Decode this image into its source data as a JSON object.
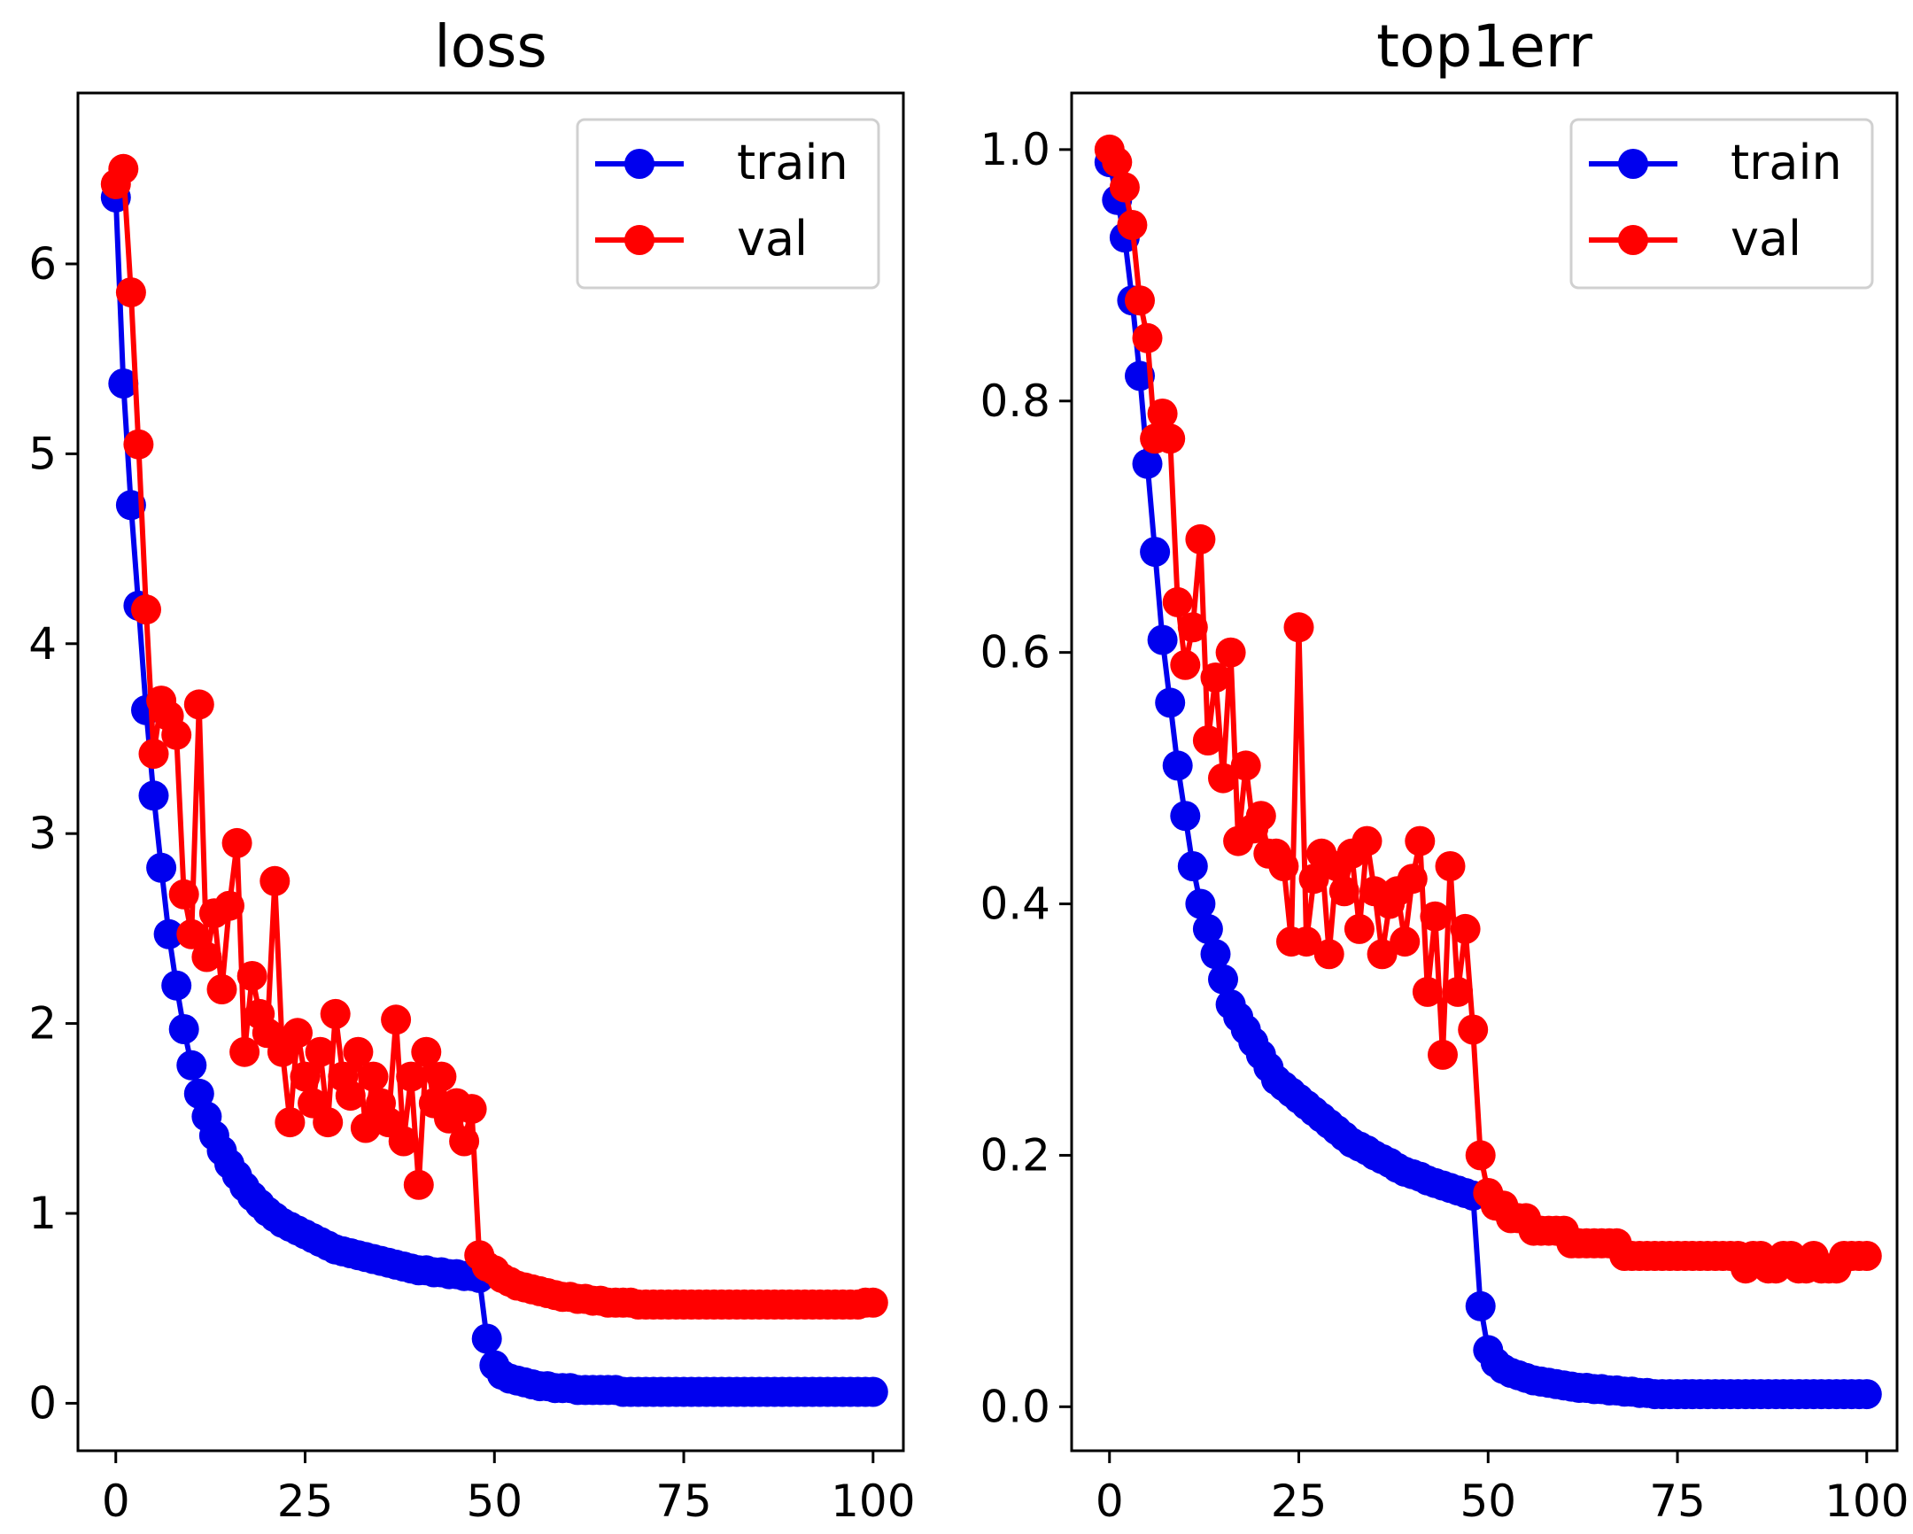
{
  "chart_data": [
    {
      "type": "line",
      "title": "loss",
      "xlabel": "",
      "ylabel": "",
      "xlim": [
        -5,
        104
      ],
      "ylim": [
        -0.25,
        6.9
      ],
      "xticks": [
        0,
        25,
        50,
        75,
        100
      ],
      "xtick_labels": [
        "0",
        "25",
        "50",
        "75",
        "100"
      ],
      "yticks": [
        0,
        1,
        2,
        3,
        4,
        5,
        6
      ],
      "ytick_labels": [
        "0",
        "1",
        "2",
        "3",
        "4",
        "5",
        "6"
      ],
      "legend": "top-right",
      "grid": false,
      "x": [
        0,
        1,
        2,
        3,
        4,
        5,
        6,
        7,
        8,
        9,
        10,
        11,
        12,
        13,
        14,
        15,
        16,
        17,
        18,
        19,
        20,
        21,
        22,
        23,
        24,
        25,
        26,
        27,
        28,
        29,
        30,
        31,
        32,
        33,
        34,
        35,
        36,
        37,
        38,
        39,
        40,
        41,
        42,
        43,
        44,
        45,
        46,
        47,
        48,
        49,
        50,
        51,
        52,
        53,
        54,
        55,
        56,
        57,
        58,
        59,
        60,
        61,
        62,
        63,
        64,
        65,
        66,
        67,
        68,
        69,
        70,
        71,
        72,
        73,
        74,
        75,
        76,
        77,
        78,
        79,
        80,
        81,
        82,
        83,
        84,
        85,
        86,
        87,
        88,
        89,
        90,
        91,
        92,
        93,
        94,
        95,
        96,
        97,
        98,
        99,
        100
      ],
      "series": [
        {
          "name": "train",
          "color": "#0000ee",
          "values": [
            6.35,
            5.37,
            4.73,
            4.2,
            3.65,
            3.2,
            2.82,
            2.47,
            2.2,
            1.97,
            1.78,
            1.63,
            1.51,
            1.41,
            1.33,
            1.26,
            1.2,
            1.14,
            1.09,
            1.05,
            1.01,
            0.98,
            0.95,
            0.93,
            0.91,
            0.89,
            0.87,
            0.85,
            0.83,
            0.81,
            0.8,
            0.79,
            0.78,
            0.77,
            0.76,
            0.75,
            0.74,
            0.73,
            0.72,
            0.71,
            0.7,
            0.7,
            0.69,
            0.69,
            0.68,
            0.68,
            0.67,
            0.67,
            0.66,
            0.34,
            0.2,
            0.15,
            0.13,
            0.12,
            0.11,
            0.1,
            0.09,
            0.09,
            0.08,
            0.08,
            0.08,
            0.07,
            0.07,
            0.07,
            0.07,
            0.07,
            0.07,
            0.06,
            0.06,
            0.06,
            0.06,
            0.06,
            0.06,
            0.06,
            0.06,
            0.06,
            0.06,
            0.06,
            0.06,
            0.06,
            0.06,
            0.06,
            0.06,
            0.06,
            0.06,
            0.06,
            0.06,
            0.06,
            0.06,
            0.06,
            0.06,
            0.06,
            0.06,
            0.06,
            0.06,
            0.06,
            0.06,
            0.06,
            0.06,
            0.06,
            0.06
          ]
        },
        {
          "name": "val",
          "color": "#ff0000",
          "values": [
            6.42,
            6.5,
            5.85,
            5.05,
            4.18,
            3.42,
            3.7,
            3.62,
            3.52,
            2.68,
            2.47,
            3.68,
            2.35,
            2.58,
            2.18,
            2.62,
            2.95,
            1.85,
            2.25,
            2.05,
            1.95,
            2.75,
            1.85,
            1.48,
            1.95,
            1.72,
            1.58,
            1.85,
            1.48,
            2.05,
            1.72,
            1.62,
            1.85,
            1.45,
            1.72,
            1.58,
            1.48,
            2.02,
            1.38,
            1.72,
            1.15,
            1.85,
            1.58,
            1.72,
            1.5,
            1.58,
            1.38,
            1.55,
            0.78,
            0.72,
            0.7,
            0.66,
            0.64,
            0.62,
            0.61,
            0.6,
            0.59,
            0.58,
            0.57,
            0.56,
            0.56,
            0.55,
            0.55,
            0.54,
            0.54,
            0.53,
            0.53,
            0.53,
            0.53,
            0.52,
            0.52,
            0.52,
            0.52,
            0.52,
            0.52,
            0.52,
            0.52,
            0.52,
            0.52,
            0.52,
            0.52,
            0.52,
            0.52,
            0.52,
            0.52,
            0.52,
            0.52,
            0.52,
            0.52,
            0.52,
            0.52,
            0.52,
            0.52,
            0.52,
            0.52,
            0.52,
            0.52,
            0.52,
            0.52,
            0.53,
            0.53
          ]
        }
      ]
    },
    {
      "type": "line",
      "title": "top1err",
      "xlabel": "",
      "ylabel": "",
      "xlim": [
        -5,
        104
      ],
      "ylim": [
        -0.035,
        1.045
      ],
      "xticks": [
        0,
        25,
        50,
        75,
        100
      ],
      "xtick_labels": [
        "0",
        "25",
        "50",
        "75",
        "100"
      ],
      "yticks": [
        0.0,
        0.2,
        0.4,
        0.6,
        0.8,
        1.0
      ],
      "ytick_labels": [
        "0.0",
        "0.2",
        "0.4",
        "0.6",
        "0.8",
        "1.0"
      ],
      "legend": "top-right",
      "grid": false,
      "x": [
        0,
        1,
        2,
        3,
        4,
        5,
        6,
        7,
        8,
        9,
        10,
        11,
        12,
        13,
        14,
        15,
        16,
        17,
        18,
        19,
        20,
        21,
        22,
        23,
        24,
        25,
        26,
        27,
        28,
        29,
        30,
        31,
        32,
        33,
        34,
        35,
        36,
        37,
        38,
        39,
        40,
        41,
        42,
        43,
        44,
        45,
        46,
        47,
        48,
        49,
        50,
        51,
        52,
        53,
        54,
        55,
        56,
        57,
        58,
        59,
        60,
        61,
        62,
        63,
        64,
        65,
        66,
        67,
        68,
        69,
        70,
        71,
        72,
        73,
        74,
        75,
        76,
        77,
        78,
        79,
        80,
        81,
        82,
        83,
        84,
        85,
        86,
        87,
        88,
        89,
        90,
        91,
        92,
        93,
        94,
        95,
        96,
        97,
        98,
        99,
        100
      ],
      "series": [
        {
          "name": "train",
          "color": "#0000ee",
          "values": [
            0.99,
            0.96,
            0.93,
            0.88,
            0.82,
            0.75,
            0.68,
            0.61,
            0.56,
            0.51,
            0.47,
            0.43,
            0.4,
            0.38,
            0.36,
            0.34,
            0.32,
            0.31,
            0.3,
            0.29,
            0.28,
            0.27,
            0.26,
            0.255,
            0.25,
            0.245,
            0.24,
            0.235,
            0.23,
            0.225,
            0.22,
            0.215,
            0.21,
            0.207,
            0.204,
            0.2,
            0.197,
            0.194,
            0.19,
            0.187,
            0.185,
            0.183,
            0.18,
            0.178,
            0.176,
            0.174,
            0.172,
            0.17,
            0.168,
            0.08,
            0.045,
            0.035,
            0.03,
            0.027,
            0.025,
            0.023,
            0.021,
            0.02,
            0.019,
            0.018,
            0.017,
            0.016,
            0.015,
            0.015,
            0.014,
            0.014,
            0.013,
            0.013,
            0.012,
            0.012,
            0.011,
            0.011,
            0.01,
            0.01,
            0.01,
            0.01,
            0.01,
            0.01,
            0.01,
            0.01,
            0.01,
            0.01,
            0.01,
            0.01,
            0.01,
            0.01,
            0.01,
            0.01,
            0.01,
            0.01,
            0.01,
            0.01,
            0.01,
            0.01,
            0.01,
            0.01,
            0.01,
            0.01,
            0.01,
            0.01,
            0.01
          ]
        },
        {
          "name": "val",
          "color": "#ff0000",
          "values": [
            1.0,
            0.99,
            0.97,
            0.94,
            0.88,
            0.85,
            0.77,
            0.79,
            0.77,
            0.64,
            0.59,
            0.62,
            0.69,
            0.53,
            0.58,
            0.5,
            0.6,
            0.45,
            0.51,
            0.46,
            0.47,
            0.44,
            0.44,
            0.43,
            0.37,
            0.62,
            0.37,
            0.42,
            0.44,
            0.36,
            0.43,
            0.41,
            0.44,
            0.38,
            0.45,
            0.41,
            0.36,
            0.4,
            0.41,
            0.37,
            0.42,
            0.45,
            0.33,
            0.39,
            0.28,
            0.43,
            0.33,
            0.38,
            0.3,
            0.2,
            0.17,
            0.16,
            0.16,
            0.15,
            0.15,
            0.15,
            0.14,
            0.14,
            0.14,
            0.14,
            0.14,
            0.13,
            0.13,
            0.13,
            0.13,
            0.13,
            0.13,
            0.13,
            0.12,
            0.12,
            0.12,
            0.12,
            0.12,
            0.12,
            0.12,
            0.12,
            0.12,
            0.12,
            0.12,
            0.12,
            0.12,
            0.12,
            0.12,
            0.12,
            0.11,
            0.12,
            0.12,
            0.11,
            0.11,
            0.12,
            0.12,
            0.11,
            0.11,
            0.12,
            0.11,
            0.11,
            0.11,
            0.12,
            0.12,
            0.12,
            0.12
          ]
        }
      ]
    }
  ]
}
